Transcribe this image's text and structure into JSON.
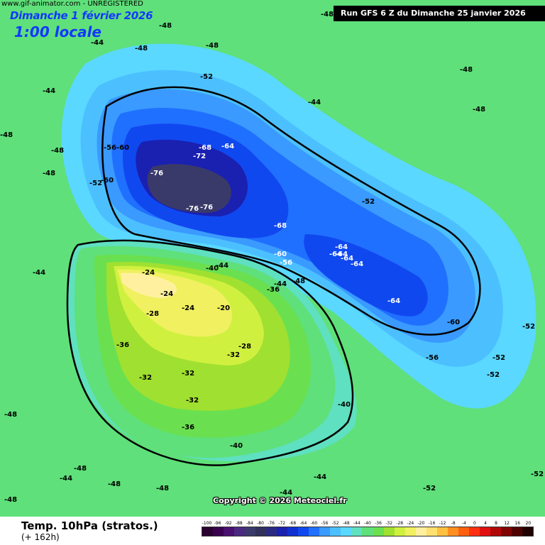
{
  "header": {
    "watermark": "www.gif-animator.com - UNREGISTERED",
    "valid_date": "Dimanche 1 février 2026",
    "valid_time": "1:00 locale",
    "run_info": "Run GFS 6 Z du Dimanche 25 janvier 2026"
  },
  "copyright": "Copyright © 2026 Meteociel.fr",
  "footer": {
    "title": "Temp. 10hPa (stratos.)",
    "subtitle": "(+ 162h)"
  },
  "legend": {
    "labels": [
      "-100",
      "-96",
      "-92",
      "-88",
      "-84",
      "-80",
      "-76",
      "-72",
      "-68",
      "-64",
      "-60",
      "-56",
      "-52",
      "-48",
      "-44",
      "-40",
      "-36",
      "-32",
      "-28",
      "-24",
      "-20",
      "-16",
      "-12",
      "-8",
      "-4",
      "0",
      "4",
      "8",
      "12",
      "16",
      "20"
    ],
    "colors": [
      "#2a0030",
      "#3a0050",
      "#4a1070",
      "#4a2a80",
      "#3a3a6a",
      "#30305a",
      "#2a2a80",
      "#1a20b0",
      "#1030d0",
      "#1048f0",
      "#2070ff",
      "#3a9aff",
      "#4cc0ff",
      "#5ad8ff",
      "#5fe0c0",
      "#5fe07a",
      "#6ae050",
      "#a0e030",
      "#d0f040",
      "#f0f060",
      "#fff0a0",
      "#ffe070",
      "#ffc040",
      "#ff9020",
      "#ff6010",
      "#ff3010",
      "#e01010",
      "#b00808",
      "#800404",
      "#500000",
      "#200000"
    ]
  },
  "contour_labels": [
    {
      "text": "-48",
      "color": "dark"
    },
    {
      "text": "-44",
      "color": "dark"
    },
    {
      "text": "-48",
      "color": "dark"
    },
    {
      "text": "-48",
      "color": "dark"
    },
    {
      "text": "-48",
      "color": "dark"
    },
    {
      "text": "-44",
      "color": "dark"
    },
    {
      "text": "-48",
      "color": "dark"
    },
    {
      "text": "-48",
      "color": "dark"
    },
    {
      "text": "-52",
      "color": "dark"
    },
    {
      "text": "-48",
      "color": "dark"
    },
    {
      "text": "-44",
      "color": "dark"
    },
    {
      "text": "-48",
      "color": "dark"
    },
    {
      "text": "-48",
      "color": "dark"
    },
    {
      "text": "-56",
      "color": "dark"
    },
    {
      "text": "-60",
      "color": "dark"
    },
    {
      "text": "-68",
      "color": "light"
    },
    {
      "text": "-64",
      "color": "light"
    },
    {
      "text": "-72",
      "color": "light"
    },
    {
      "text": "-76",
      "color": "light"
    },
    {
      "text": "-76",
      "color": "light"
    },
    {
      "text": "-76",
      "color": "light"
    },
    {
      "text": "-68",
      "color": "light"
    },
    {
      "text": "-60",
      "color": "light"
    },
    {
      "text": "-52",
      "color": "dark"
    },
    {
      "text": "-60",
      "color": "light"
    },
    {
      "text": "-56",
      "color": "light"
    },
    {
      "text": "-64",
      "color": "light"
    },
    {
      "text": "-64",
      "color": "light"
    },
    {
      "text": "-64",
      "color": "light"
    },
    {
      "text": "-64",
      "color": "light"
    },
    {
      "text": "-64",
      "color": "light"
    },
    {
      "text": "-64",
      "color": "light"
    },
    {
      "text": "-60",
      "color": "dark"
    },
    {
      "text": "-56",
      "color": "dark"
    },
    {
      "text": "-52",
      "color": "dark"
    },
    {
      "text": "-52",
      "color": "dark"
    },
    {
      "text": "-52",
      "color": "dark"
    },
    {
      "text": "-52",
      "color": "dark"
    },
    {
      "text": "-48",
      "color": "dark"
    },
    {
      "text": "-44",
      "color": "dark"
    },
    {
      "text": "-44",
      "color": "dark"
    },
    {
      "text": "-44",
      "color": "dark"
    },
    {
      "text": "-40",
      "color": "dark"
    },
    {
      "text": "-40",
      "color": "dark"
    },
    {
      "text": "-40",
      "color": "dark"
    },
    {
      "text": "-36",
      "color": "dark"
    },
    {
      "text": "-36",
      "color": "dark"
    },
    {
      "text": "-36",
      "color": "dark"
    },
    {
      "text": "-32",
      "color": "dark"
    },
    {
      "text": "-32",
      "color": "dark"
    },
    {
      "text": "-32",
      "color": "dark"
    },
    {
      "text": "-32",
      "color": "dark"
    },
    {
      "text": "-28",
      "color": "dark"
    },
    {
      "text": "-28",
      "color": "dark"
    },
    {
      "text": "-24",
      "color": "dark"
    },
    {
      "text": "-24",
      "color": "dark"
    },
    {
      "text": "-24",
      "color": "dark"
    },
    {
      "text": "-20",
      "color": "dark"
    },
    {
      "text": "-48",
      "color": "dark"
    },
    {
      "text": "-48",
      "color": "dark"
    },
    {
      "text": "-48",
      "color": "dark"
    },
    {
      "text": "-48",
      "color": "dark"
    },
    {
      "text": "-52",
      "color": "dark"
    },
    {
      "text": "-52",
      "color": "dark"
    },
    {
      "text": "-44",
      "color": "dark"
    },
    {
      "text": "-44",
      "color": "dark"
    },
    {
      "text": "-44",
      "color": "dark"
    },
    {
      "text": "-48",
      "color": "dark"
    }
  ]
}
